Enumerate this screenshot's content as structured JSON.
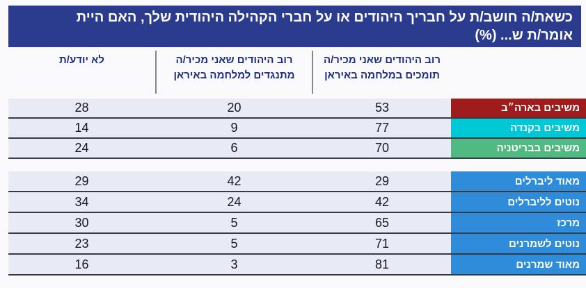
{
  "title": "כשאת/ה חושב/ת על חבריך היהודים או על חברי הקהילה היהודית שלך, האם היית\nאומר/ת ש... (%)",
  "colors": {
    "title_bg": "#2B3B8E",
    "header_text": "#1C2D82",
    "row_bg": "#E8EAF6",
    "row_separator": "#3A3A42",
    "header_divider": "#85858D",
    "label_us": "#A01B1B",
    "label_canada": "#00C8D6",
    "label_britain": "#50BA82",
    "label_political": "#2E8CDB"
  },
  "chart_data": {
    "type": "table",
    "title": "כשאת/ה חושב/ת על חבריך היהודים או על חברי הקהילה היהודית שלך, האם היית אומר/ת ש... (%)",
    "columns": {
      "support": "רוב היהודים שאני מכיר/ה\nתומכים במלחמה באיראן",
      "oppose": "רוב היהודים שאני מכיר/ה\nמתנגדים למלחמה באיראן",
      "dont_know": "לא יודע/ת"
    },
    "groups": [
      [
        {
          "label": "משיבים בארה״ב",
          "color": "#A01B1B",
          "support": 53,
          "oppose": 20,
          "dont_know": 28
        },
        {
          "label": "משיבים בקנדה",
          "color": "#00C8D6",
          "support": 77,
          "oppose": 9,
          "dont_know": 14
        },
        {
          "label": "משיבים בבריטניה",
          "color": "#50BA82",
          "support": 70,
          "oppose": 6,
          "dont_know": 24
        }
      ],
      [
        {
          "label": "מאוד ליברלים",
          "color": "#2E8CDB",
          "support": 29,
          "oppose": 42,
          "dont_know": 29
        },
        {
          "label": "נוטים לליברלים",
          "color": "#2E8CDB",
          "support": 42,
          "oppose": 24,
          "dont_know": 34
        },
        {
          "label": "מרכז",
          "color": "#2E8CDB",
          "support": 65,
          "oppose": 5,
          "dont_know": 30
        },
        {
          "label": "נוטים לשמרנים",
          "color": "#2E8CDB",
          "support": 71,
          "oppose": 5,
          "dont_know": 23
        },
        {
          "label": "מאוד שמרנים",
          "color": "#2E8CDB",
          "support": 81,
          "oppose": 3,
          "dont_know": 16
        }
      ]
    ]
  }
}
